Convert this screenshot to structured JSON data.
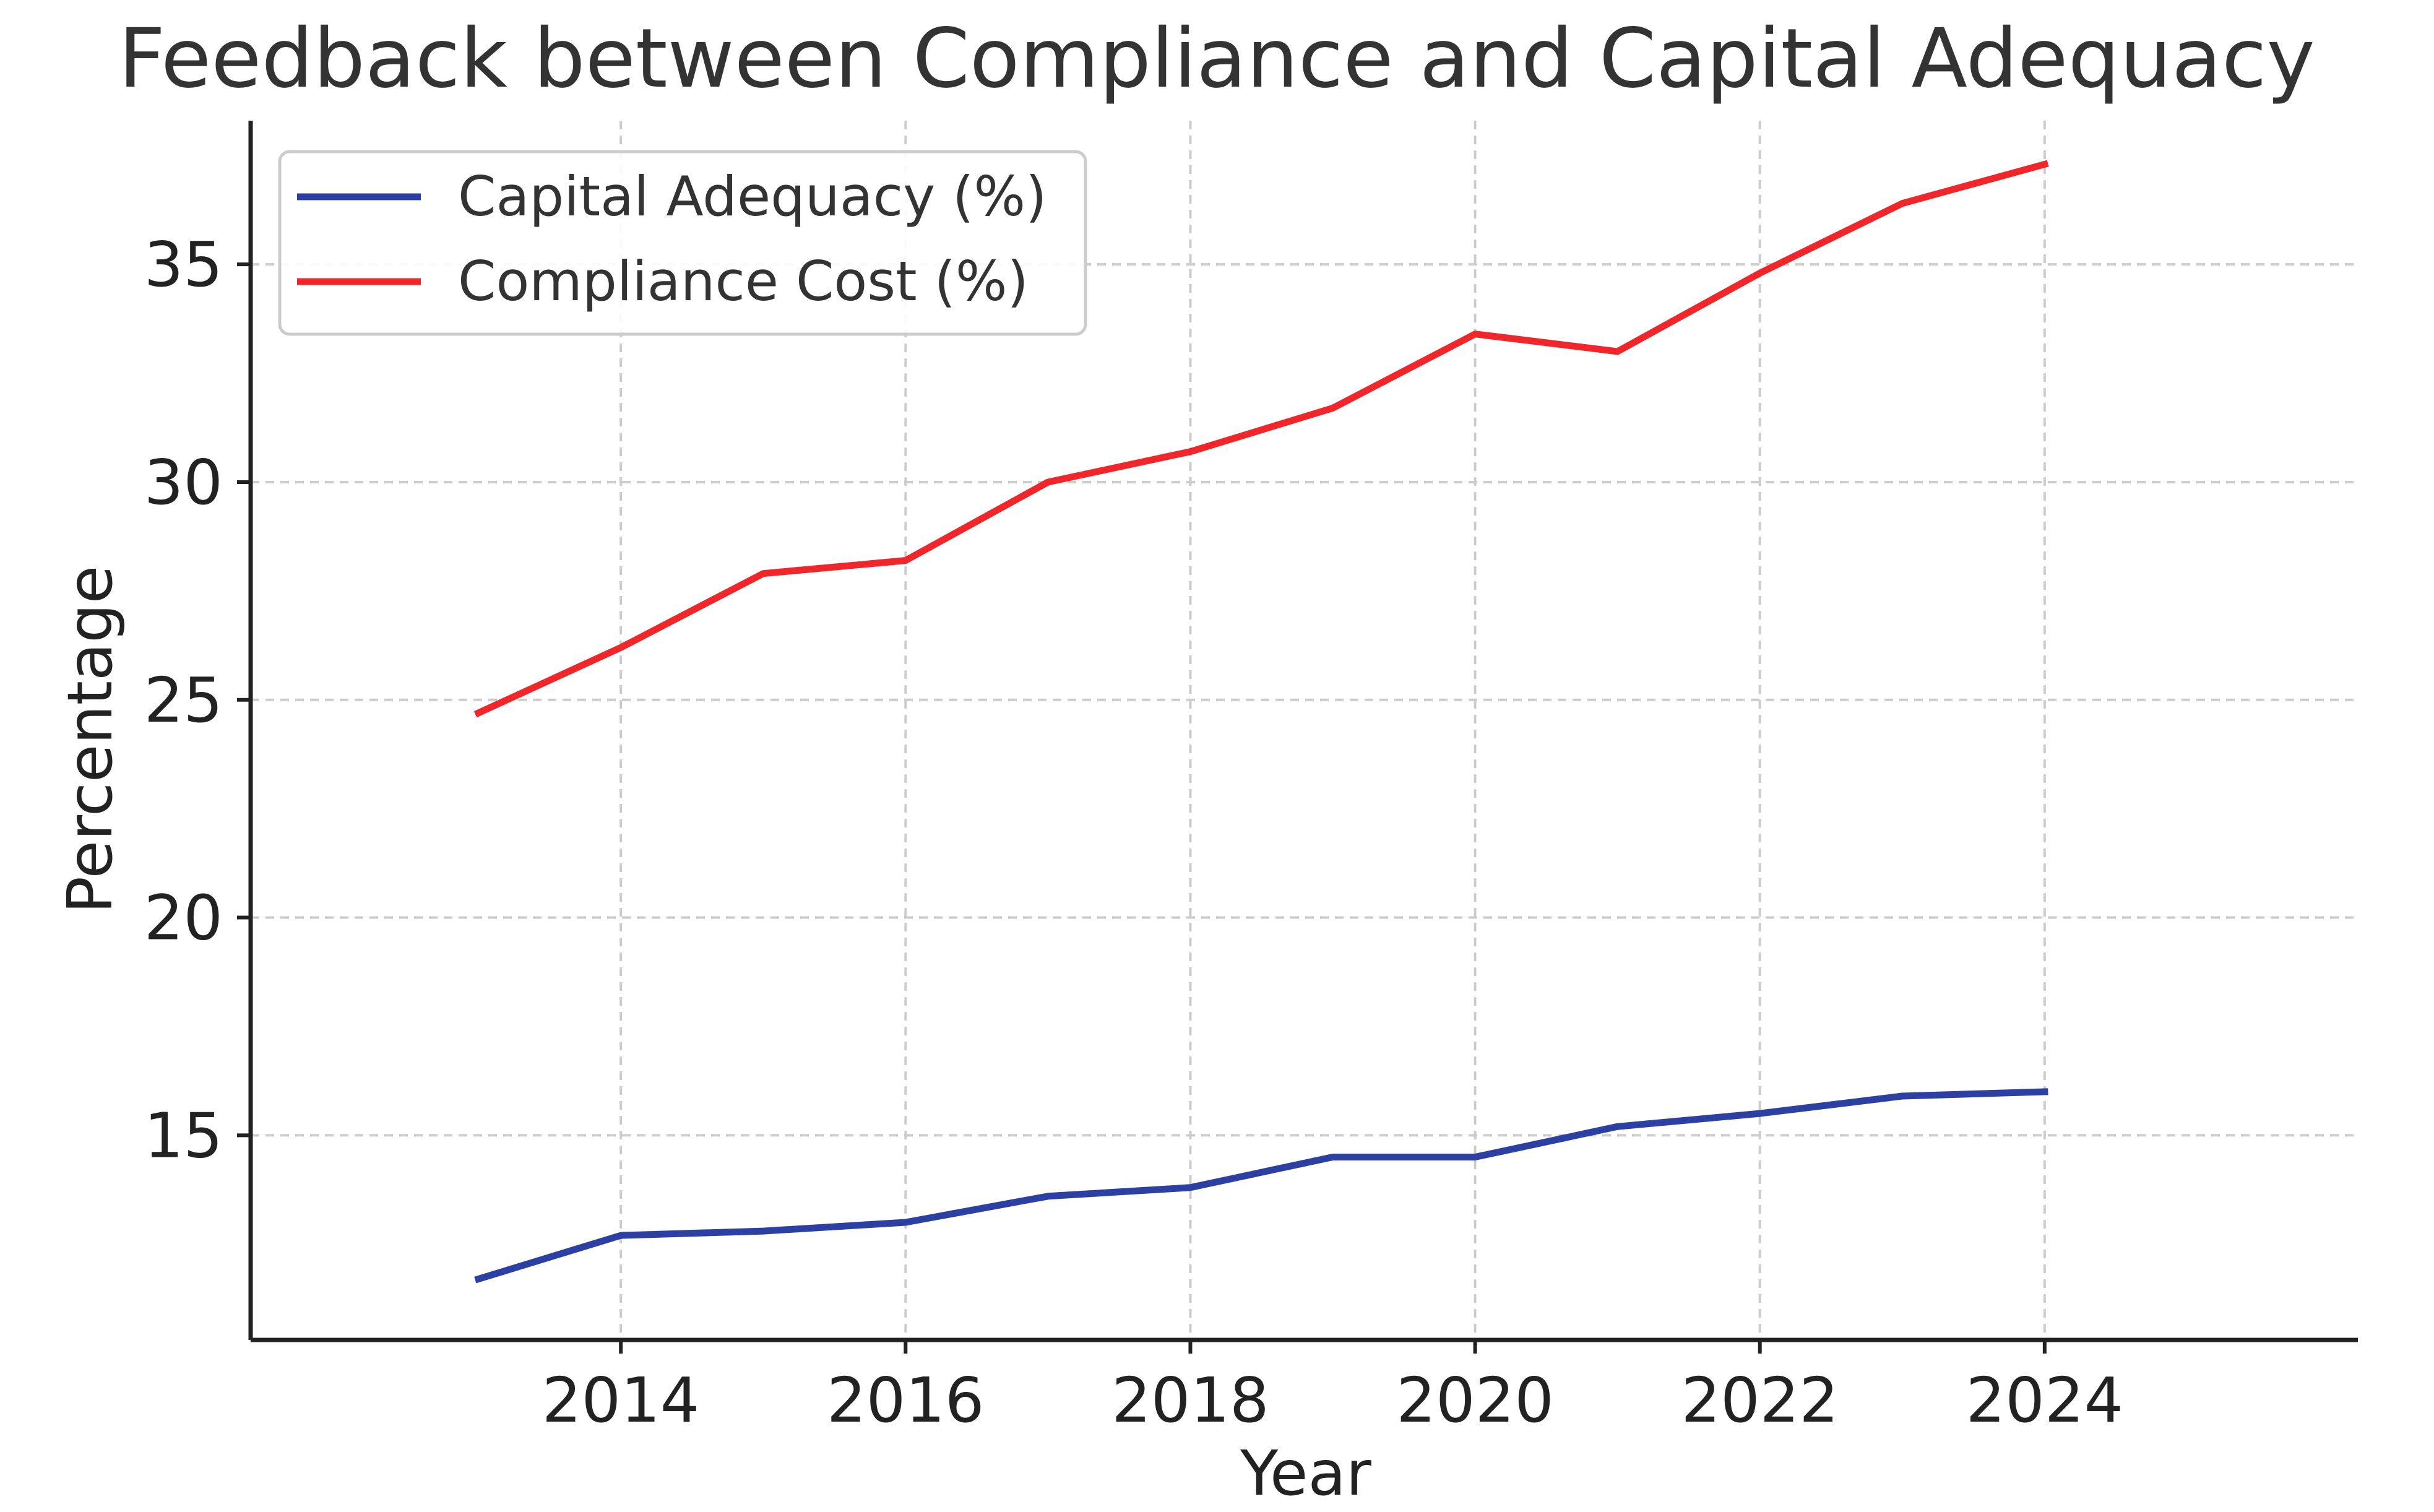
{
  "chart_data": {
    "type": "line",
    "title": "Feedback between Compliance and Capital Adequacy",
    "xlabel": "Year",
    "ylabel": "Percentage",
    "x": [
      2013,
      2014,
      2015,
      2016,
      2017,
      2018,
      2019,
      2020,
      2021,
      2022,
      2023,
      2024
    ],
    "xlim": [
      2011.4,
      2026.2
    ],
    "ylim": [
      10.3,
      38.3
    ],
    "xticks": [
      2014,
      2016,
      2018,
      2020,
      2022,
      2024
    ],
    "yticks": [
      15,
      20,
      25,
      30,
      35
    ],
    "grid": true,
    "legend_position": "top-left",
    "series": [
      {
        "name": "Capital Adequacy (%)",
        "color": "#2c3fa3",
        "values": [
          11.7,
          12.7,
          12.8,
          13.0,
          13.6,
          13.8,
          14.5,
          14.5,
          15.2,
          15.5,
          15.9,
          16.0
        ]
      },
      {
        "name": "Compliance Cost (%)",
        "color": "#f0262b",
        "values": [
          24.7,
          26.2,
          27.9,
          28.2,
          30.0,
          30.7,
          31.7,
          33.4,
          33.0,
          34.8,
          36.4,
          37.3
        ]
      }
    ]
  }
}
